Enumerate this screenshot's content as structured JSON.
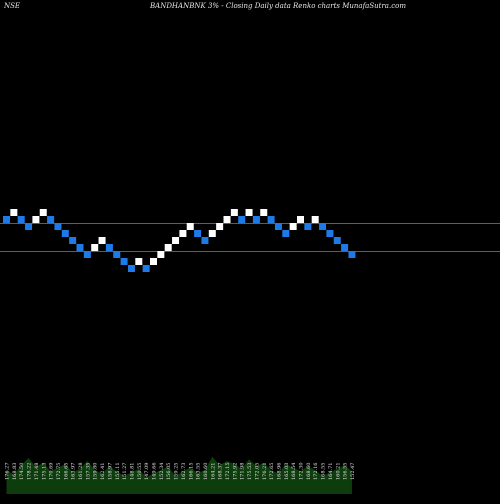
{
  "header": {
    "exchange": "NSE",
    "title": "BANDHANBNK 3% - Closing Daily data Renko charts MunafaSutra.com"
  },
  "colors": {
    "background": "#000000",
    "brick_up": "#ffffff",
    "brick_down": "#1e7ae6",
    "line": "#a04a1a",
    "volume": "#0d3d0d",
    "label": "#e6e6e6"
  },
  "chart_data": {
    "type": "renko",
    "box_size_pct": 3,
    "bricks": [
      {
        "dir": "down",
        "level": 6
      },
      {
        "dir": "up",
        "level": 7
      },
      {
        "dir": "down",
        "level": 6
      },
      {
        "dir": "down",
        "level": 5
      },
      {
        "dir": "up",
        "level": 6
      },
      {
        "dir": "up",
        "level": 7
      },
      {
        "dir": "down",
        "level": 6
      },
      {
        "dir": "down",
        "level": 5
      },
      {
        "dir": "down",
        "level": 4
      },
      {
        "dir": "down",
        "level": 3
      },
      {
        "dir": "down",
        "level": 2
      },
      {
        "dir": "down",
        "level": 1
      },
      {
        "dir": "up",
        "level": 2
      },
      {
        "dir": "up",
        "level": 3
      },
      {
        "dir": "down",
        "level": 2
      },
      {
        "dir": "down",
        "level": 1
      },
      {
        "dir": "down",
        "level": 0
      },
      {
        "dir": "down",
        "level": -1
      },
      {
        "dir": "up",
        "level": 0
      },
      {
        "dir": "down",
        "level": -1
      },
      {
        "dir": "up",
        "level": 0
      },
      {
        "dir": "up",
        "level": 1
      },
      {
        "dir": "up",
        "level": 2
      },
      {
        "dir": "up",
        "level": 3
      },
      {
        "dir": "up",
        "level": 4
      },
      {
        "dir": "up",
        "level": 5
      },
      {
        "dir": "down",
        "level": 4
      },
      {
        "dir": "down",
        "level": 3
      },
      {
        "dir": "up",
        "level": 4
      },
      {
        "dir": "up",
        "level": 5
      },
      {
        "dir": "up",
        "level": 6
      },
      {
        "dir": "up",
        "level": 7
      },
      {
        "dir": "down",
        "level": 6
      },
      {
        "dir": "up",
        "level": 7
      },
      {
        "dir": "down",
        "level": 6
      },
      {
        "dir": "up",
        "level": 7
      },
      {
        "dir": "down",
        "level": 6
      },
      {
        "dir": "down",
        "level": 5
      },
      {
        "dir": "down",
        "level": 4
      },
      {
        "dir": "up",
        "level": 5
      },
      {
        "dir": "up",
        "level": 6
      },
      {
        "dir": "down",
        "level": 5
      },
      {
        "dir": "up",
        "level": 6
      },
      {
        "dir": "down",
        "level": 5
      },
      {
        "dir": "down",
        "level": 4
      },
      {
        "dir": "down",
        "level": 3
      },
      {
        "dir": "down",
        "level": 2
      },
      {
        "dir": "down",
        "level": 1
      }
    ],
    "horizontal_lines": [
      {
        "level": 5.5
      },
      {
        "level": 1.5
      }
    ],
    "volume": [
      0.4,
      0.32,
      0.48,
      0.6,
      0.45,
      0.52,
      0.38,
      0.44,
      0.5,
      0.36,
      0.42,
      0.55,
      0.4,
      0.34,
      0.46,
      0.38,
      0.3,
      0.36,
      0.42,
      0.28,
      0.34,
      0.4,
      0.45,
      0.3,
      0.38,
      0.44,
      0.35,
      0.4,
      0.62,
      0.48,
      0.55,
      0.5,
      0.42,
      0.58,
      0.46,
      0.52,
      0.4,
      0.34,
      0.5,
      0.44,
      0.38,
      0.46,
      0.4,
      0.3,
      0.36,
      0.42,
      0.48,
      0.38
    ],
    "volume_labels": [
      "176.27",
      "168.83",
      "174.50",
      "178.22",
      "171.48",
      "175.13",
      "170.69",
      "172.75",
      "166.65",
      "163.97",
      "161.28",
      "157.35",
      "159.80",
      "162.41",
      "158.97",
      "155.11",
      "151.27",
      "148.81",
      "150.55",
      "147.09",
      "149.66",
      "152.34",
      "156.05",
      "159.25",
      "162.73",
      "166.15",
      "163.55",
      "160.60",
      "164.21",
      "168.37",
      "172.15",
      "175.92",
      "171.98",
      "175.53",
      "172.05",
      "176.21",
      "172.65",
      "168.96",
      "165.03",
      "168.54",
      "172.30",
      "168.60",
      "172.16",
      "168.55",
      "164.71",
      "160.21",
      "156.55",
      "152.47"
    ]
  }
}
